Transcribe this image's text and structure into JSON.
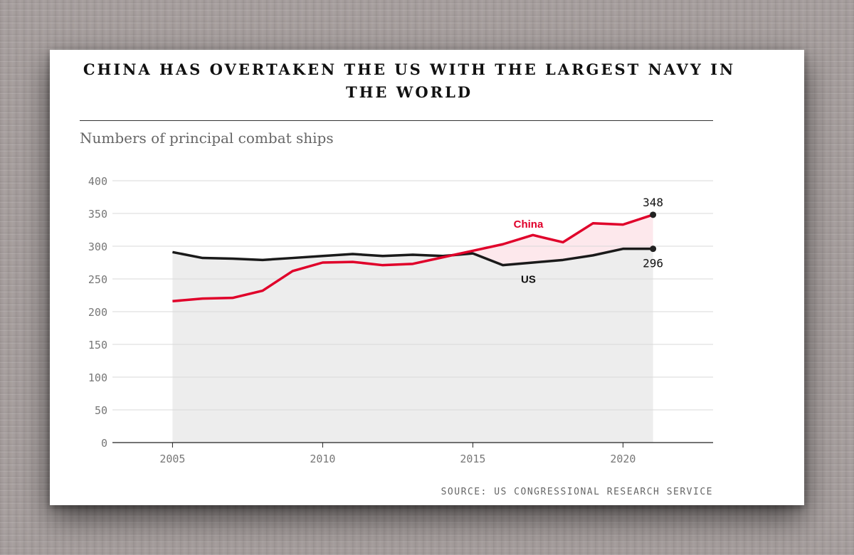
{
  "header": {
    "title": "CHINA HAS OVERTAKEN THE US WITH THE LARGEST NAVY IN THE WORLD",
    "subtitle": "Numbers of principal combat ships"
  },
  "footer": {
    "source": "SOURCE: US CONGRESSIONAL RESEARCH SERVICE"
  },
  "colors": {
    "china": "#e0002a",
    "us": "#1a1a1a",
    "fill_gray": "#ededed",
    "fill_pink": "#fde8ec",
    "grid": "#d9d9d9",
    "tick_text": "#777777"
  },
  "chart_data": {
    "type": "line",
    "title": "CHINA HAS OVERTAKEN THE US WITH THE LARGEST NAVY IN THE WORLD",
    "subtitle": "Numbers of principal combat ships",
    "xlabel": "",
    "ylabel": "",
    "xlim": [
      2003,
      2023
    ],
    "ylim": [
      0,
      400
    ],
    "x_ticks": [
      2005,
      2010,
      2015,
      2020
    ],
    "y_ticks": [
      0,
      50,
      100,
      150,
      200,
      250,
      300,
      350,
      400
    ],
    "grid": true,
    "x": [
      2005,
      2006,
      2007,
      2008,
      2009,
      2010,
      2011,
      2012,
      2013,
      2014,
      2015,
      2016,
      2017,
      2018,
      2019,
      2020,
      2021
    ],
    "series": [
      {
        "name": "China",
        "color": "#e0002a",
        "values": [
          216,
          220,
          221,
          232,
          262,
          275,
          276,
          271,
          273,
          283,
          293,
          303,
          317,
          306,
          335,
          333,
          348
        ],
        "end_label": "348"
      },
      {
        "name": "US",
        "color": "#1a1a1a",
        "values": [
          291,
          282,
          281,
          279,
          282,
          285,
          288,
          285,
          287,
          285,
          289,
          271,
          275,
          279,
          286,
          296,
          296
        ],
        "end_label": "296"
      }
    ],
    "source": "SOURCE: US CONGRESSIONAL RESEARCH SERVICE"
  }
}
